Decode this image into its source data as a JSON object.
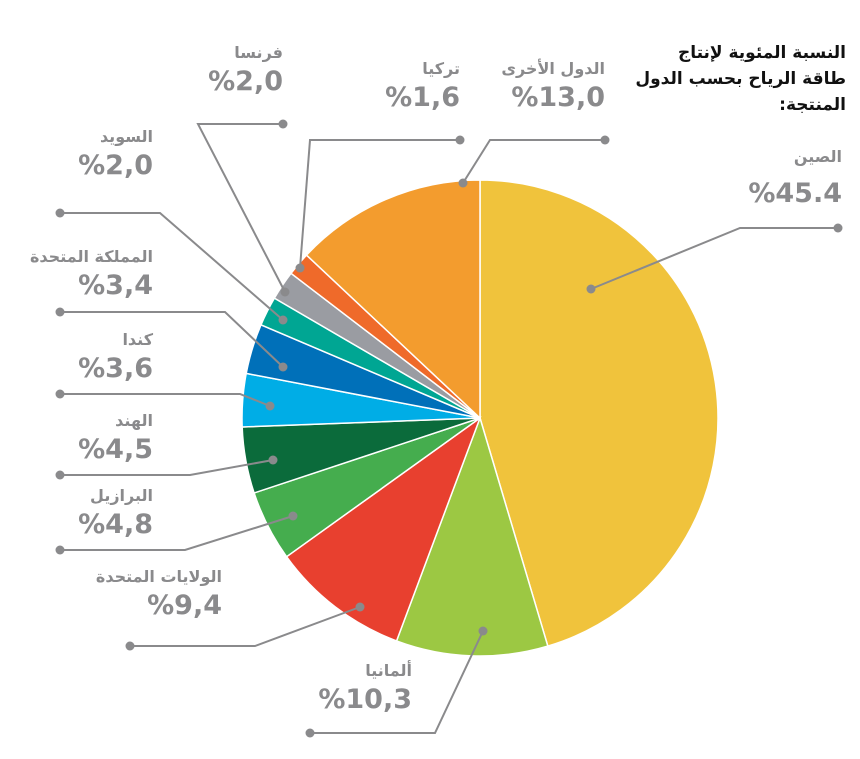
{
  "chart_data": {
    "type": "pie",
    "title": "النسبة المئوية لإنتاج طاقة الرياح بحسب الدول المنتجة:",
    "unit": "%",
    "slices": [
      {
        "name": "الصين",
        "value": 45.4,
        "label": "%45.4",
        "color": "#f0c33c"
      },
      {
        "name": "ألمانيا",
        "value": 10.3,
        "label": "%10,3",
        "color": "#9cc843"
      },
      {
        "name": "الولايات المتحدة",
        "value": 9.4,
        "label": "%9,4",
        "color": "#e8402f"
      },
      {
        "name": "البرازيل",
        "value": 4.8,
        "label": "%4,8",
        "color": "#45ad4e"
      },
      {
        "name": "الهند",
        "value": 4.5,
        "label": "%4,5",
        "color": "#0b6b3b"
      },
      {
        "name": "كندا",
        "value": 3.6,
        "label": "%3,6",
        "color": "#00ade6"
      },
      {
        "name": "المملكة المتحدة",
        "value": 3.4,
        "label": "%3,4",
        "color": "#0070b9"
      },
      {
        "name": "السويد",
        "value": 2.0,
        "label": "%2,0",
        "color": "#00a693"
      },
      {
        "name": "فرنسا",
        "value": 2.0,
        "label": "%2,0",
        "color": "#9a9ca2"
      },
      {
        "name": "تركيا",
        "value": 1.6,
        "label": "%1,6",
        "color": "#ef6a2a"
      },
      {
        "name": "الدول الأخرى",
        "value": 13.0,
        "label": "%13,0",
        "color": "#f39c2e"
      }
    ]
  }
}
